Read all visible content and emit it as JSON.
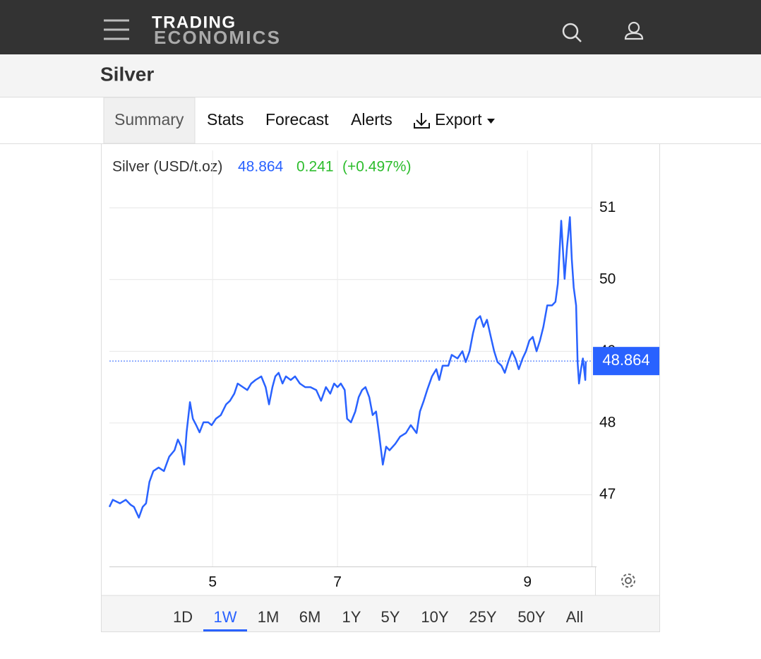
{
  "logo": [
    "TRADING",
    "ECONOMICS"
  ],
  "page_title": "Silver",
  "tabs": [
    "Summary",
    "Stats",
    "Forecast",
    "Alerts",
    "Export"
  ],
  "range_buttons": [
    "1D",
    "1W",
    "1M",
    "6M",
    "1Y",
    "5Y",
    "10Y",
    "25Y",
    "50Y",
    "All"
  ],
  "chart_data": {
    "type": "line",
    "title": "Silver (USD/t.oz)",
    "last_value": 48.864,
    "change": 0.241,
    "change_percent": "(+0.497%)",
    "color": "#2962ff",
    "grid": true,
    "xlim": [
      0,
      100
    ],
    "xticks": [
      {
        "value": 21.4,
        "label": "5"
      },
      {
        "value": 47.3,
        "label": "7"
      },
      {
        "value": 86.7,
        "label": "9"
      }
    ],
    "ylim": [
      46,
      51.8
    ],
    "yticks": [
      47,
      48,
      49,
      50,
      51
    ],
    "x": [
      0,
      0.7,
      2.2,
      3.4,
      4.4,
      5.1,
      6.1,
      6.9,
      7.6,
      8.3,
      9.1,
      10.2,
      11.3,
      12.4,
      13.5,
      14.2,
      14.9,
      15.5,
      16.0,
      16.7,
      17.3,
      18.0,
      18.7,
      19.5,
      20.5,
      21.2,
      22.1,
      23.1,
      24.2,
      25.0,
      25.9,
      26.6,
      27.7,
      28.6,
      29.4,
      30.3,
      31.5,
      32.4,
      33.1,
      33.8,
      34.4,
      35.1,
      35.9,
      36.6,
      37.6,
      38.5,
      39.5,
      40.6,
      41.7,
      42.9,
      43.9,
      44.9,
      45.8,
      46.6,
      47.3,
      48.0,
      48.8,
      49.3,
      50.1,
      51.0,
      51.7,
      52.4,
      53.1,
      53.9,
      54.6,
      55.3,
      55.9,
      56.7,
      57.4,
      58.1,
      59.3,
      60.3,
      61.5,
      62.5,
      63.7,
      64.4,
      65.2,
      65.9,
      66.9,
      67.8,
      68.4,
      69.1,
      70.3,
      71.0,
      72.2,
      73.2,
      73.9,
      74.7,
      75.4,
      76.1,
      76.9,
      77.6,
      78.3,
      79.1,
      79.8,
      80.5,
      81.3,
      82.0,
      82.7,
      83.5,
      84.2,
      84.9,
      85.7,
      86.4,
      87.1,
      87.8,
      88.6,
      89.3,
      90.0,
      90.8,
      91.8,
      92.5,
      93.0,
      93.7,
      94.4,
      94.9,
      95.5,
      95.9,
      96.3,
      96.8,
      97.1,
      97.4,
      97.8,
      98.2,
      98.7,
      98.8
    ],
    "values": [
      46.83,
      46.93,
      46.88,
      46.93,
      46.86,
      46.83,
      46.68,
      46.83,
      46.88,
      47.18,
      47.33,
      47.38,
      47.33,
      47.53,
      47.62,
      47.77,
      47.67,
      47.42,
      47.87,
      48.29,
      48.06,
      47.97,
      47.87,
      48.01,
      48.01,
      47.97,
      48.06,
      48.11,
      48.26,
      48.31,
      48.41,
      48.55,
      48.5,
      48.46,
      48.55,
      48.6,
      48.65,
      48.5,
      48.26,
      48.5,
      48.65,
      48.7,
      48.55,
      48.65,
      48.6,
      48.65,
      48.55,
      48.5,
      48.5,
      48.46,
      48.31,
      48.5,
      48.41,
      48.55,
      48.5,
      48.55,
      48.46,
      48.06,
      48.01,
      48.16,
      48.36,
      48.46,
      48.5,
      48.36,
      48.11,
      48.16,
      47.86,
      47.42,
      47.67,
      47.62,
      47.71,
      47.81,
      47.86,
      47.97,
      47.86,
      48.16,
      48.31,
      48.46,
      48.65,
      48.75,
      48.6,
      48.8,
      48.8,
      48.95,
      48.9,
      49.0,
      48.85,
      49.0,
      49.25,
      49.44,
      49.49,
      49.34,
      49.44,
      49.2,
      49.0,
      48.85,
      48.8,
      48.7,
      48.85,
      49.0,
      48.9,
      48.75,
      48.9,
      49.0,
      49.15,
      49.2,
      49.0,
      49.15,
      49.34,
      49.64,
      49.64,
      49.69,
      49.94,
      50.82,
      50.01,
      50.45,
      50.87,
      50.28,
      49.89,
      49.64,
      48.85,
      48.55,
      48.75,
      48.9,
      48.6,
      48.86
    ]
  }
}
